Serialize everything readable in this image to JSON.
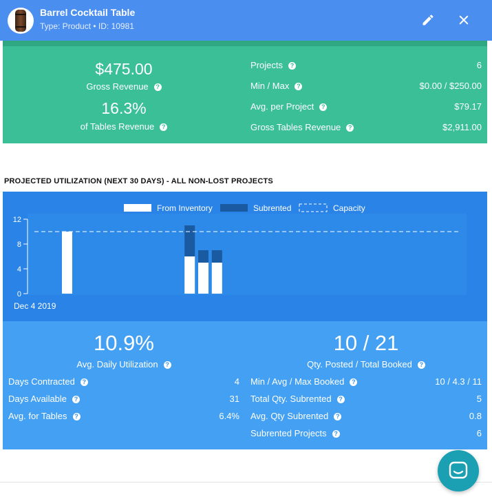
{
  "header": {
    "title": "Barrel Cocktail Table",
    "subtitle": "Type: Product • ID: 10981",
    "colors": {
      "bar": "#4a8ef0"
    }
  },
  "revenue": {
    "gross_value": "$475.00",
    "gross_label": "Gross Revenue",
    "pct_value": "16.3%",
    "pct_label": "of Tables Revenue",
    "stats": [
      {
        "label": "Projects",
        "value": "6"
      },
      {
        "label": "Min / Max",
        "value": "$0.00 / $250.00"
      },
      {
        "label": "Avg. per Project",
        "value": "$79.17"
      },
      {
        "label": "Gross Tables Revenue",
        "value": "$2,911.00"
      }
    ]
  },
  "section_title": "PROJECTED UTILIZATION (NEXT 30 DAYS) - ALL NON-LOST PROJECTS",
  "chart_data": {
    "type": "bar",
    "stacked": true,
    "legend": [
      "From Inventory",
      "Subrented",
      "Capacity"
    ],
    "legend_position": "top-center",
    "x_start_label": "Dec 4 2019",
    "days": 30,
    "ylim": [
      0,
      12
    ],
    "yticks": [
      0,
      4,
      8,
      12
    ],
    "capacity": 10,
    "series": [
      {
        "name": "From Inventory",
        "color": "#ffffff",
        "values": [
          0,
          0,
          10,
          0,
          0,
          0,
          0,
          0,
          0,
          0,
          0,
          6,
          5,
          5,
          0,
          0,
          0,
          0,
          0,
          0,
          0,
          0,
          0,
          0,
          0,
          0,
          0,
          0,
          0,
          0
        ]
      },
      {
        "name": "Subrented",
        "color": "#1a5aa0",
        "values": [
          0,
          0,
          0,
          0,
          0,
          0,
          0,
          0,
          0,
          0,
          0,
          5,
          2,
          2,
          0,
          0,
          0,
          0,
          0,
          0,
          0,
          0,
          0,
          0,
          0,
          0,
          0,
          0,
          0,
          0
        ]
      }
    ]
  },
  "utilization": {
    "daily_value": "10.9%",
    "daily_label": "Avg. Daily Utilization",
    "qty_value": "10 / 21",
    "qty_label": "Qty. Posted / Total Booked",
    "left_stats": [
      {
        "label": "Days Contracted",
        "value": "4"
      },
      {
        "label": "Days Available",
        "value": "31"
      },
      {
        "label": "Avg. for Tables",
        "value": "6.4%"
      }
    ],
    "right_stats": [
      {
        "label": "Min / Avg / Max Booked",
        "value": "10 / 4.3 / 11"
      },
      {
        "label": "Total Qty. Subrented",
        "value": "5"
      },
      {
        "label": "Avg. Qty Subrented",
        "value": "0.8"
      },
      {
        "label": "Subrented Projects",
        "value": "6"
      }
    ]
  },
  "icons": {
    "edit": "pencil-icon",
    "close": "close-icon",
    "help": "help-circle-icon",
    "chat": "chat-bubble-icon"
  }
}
